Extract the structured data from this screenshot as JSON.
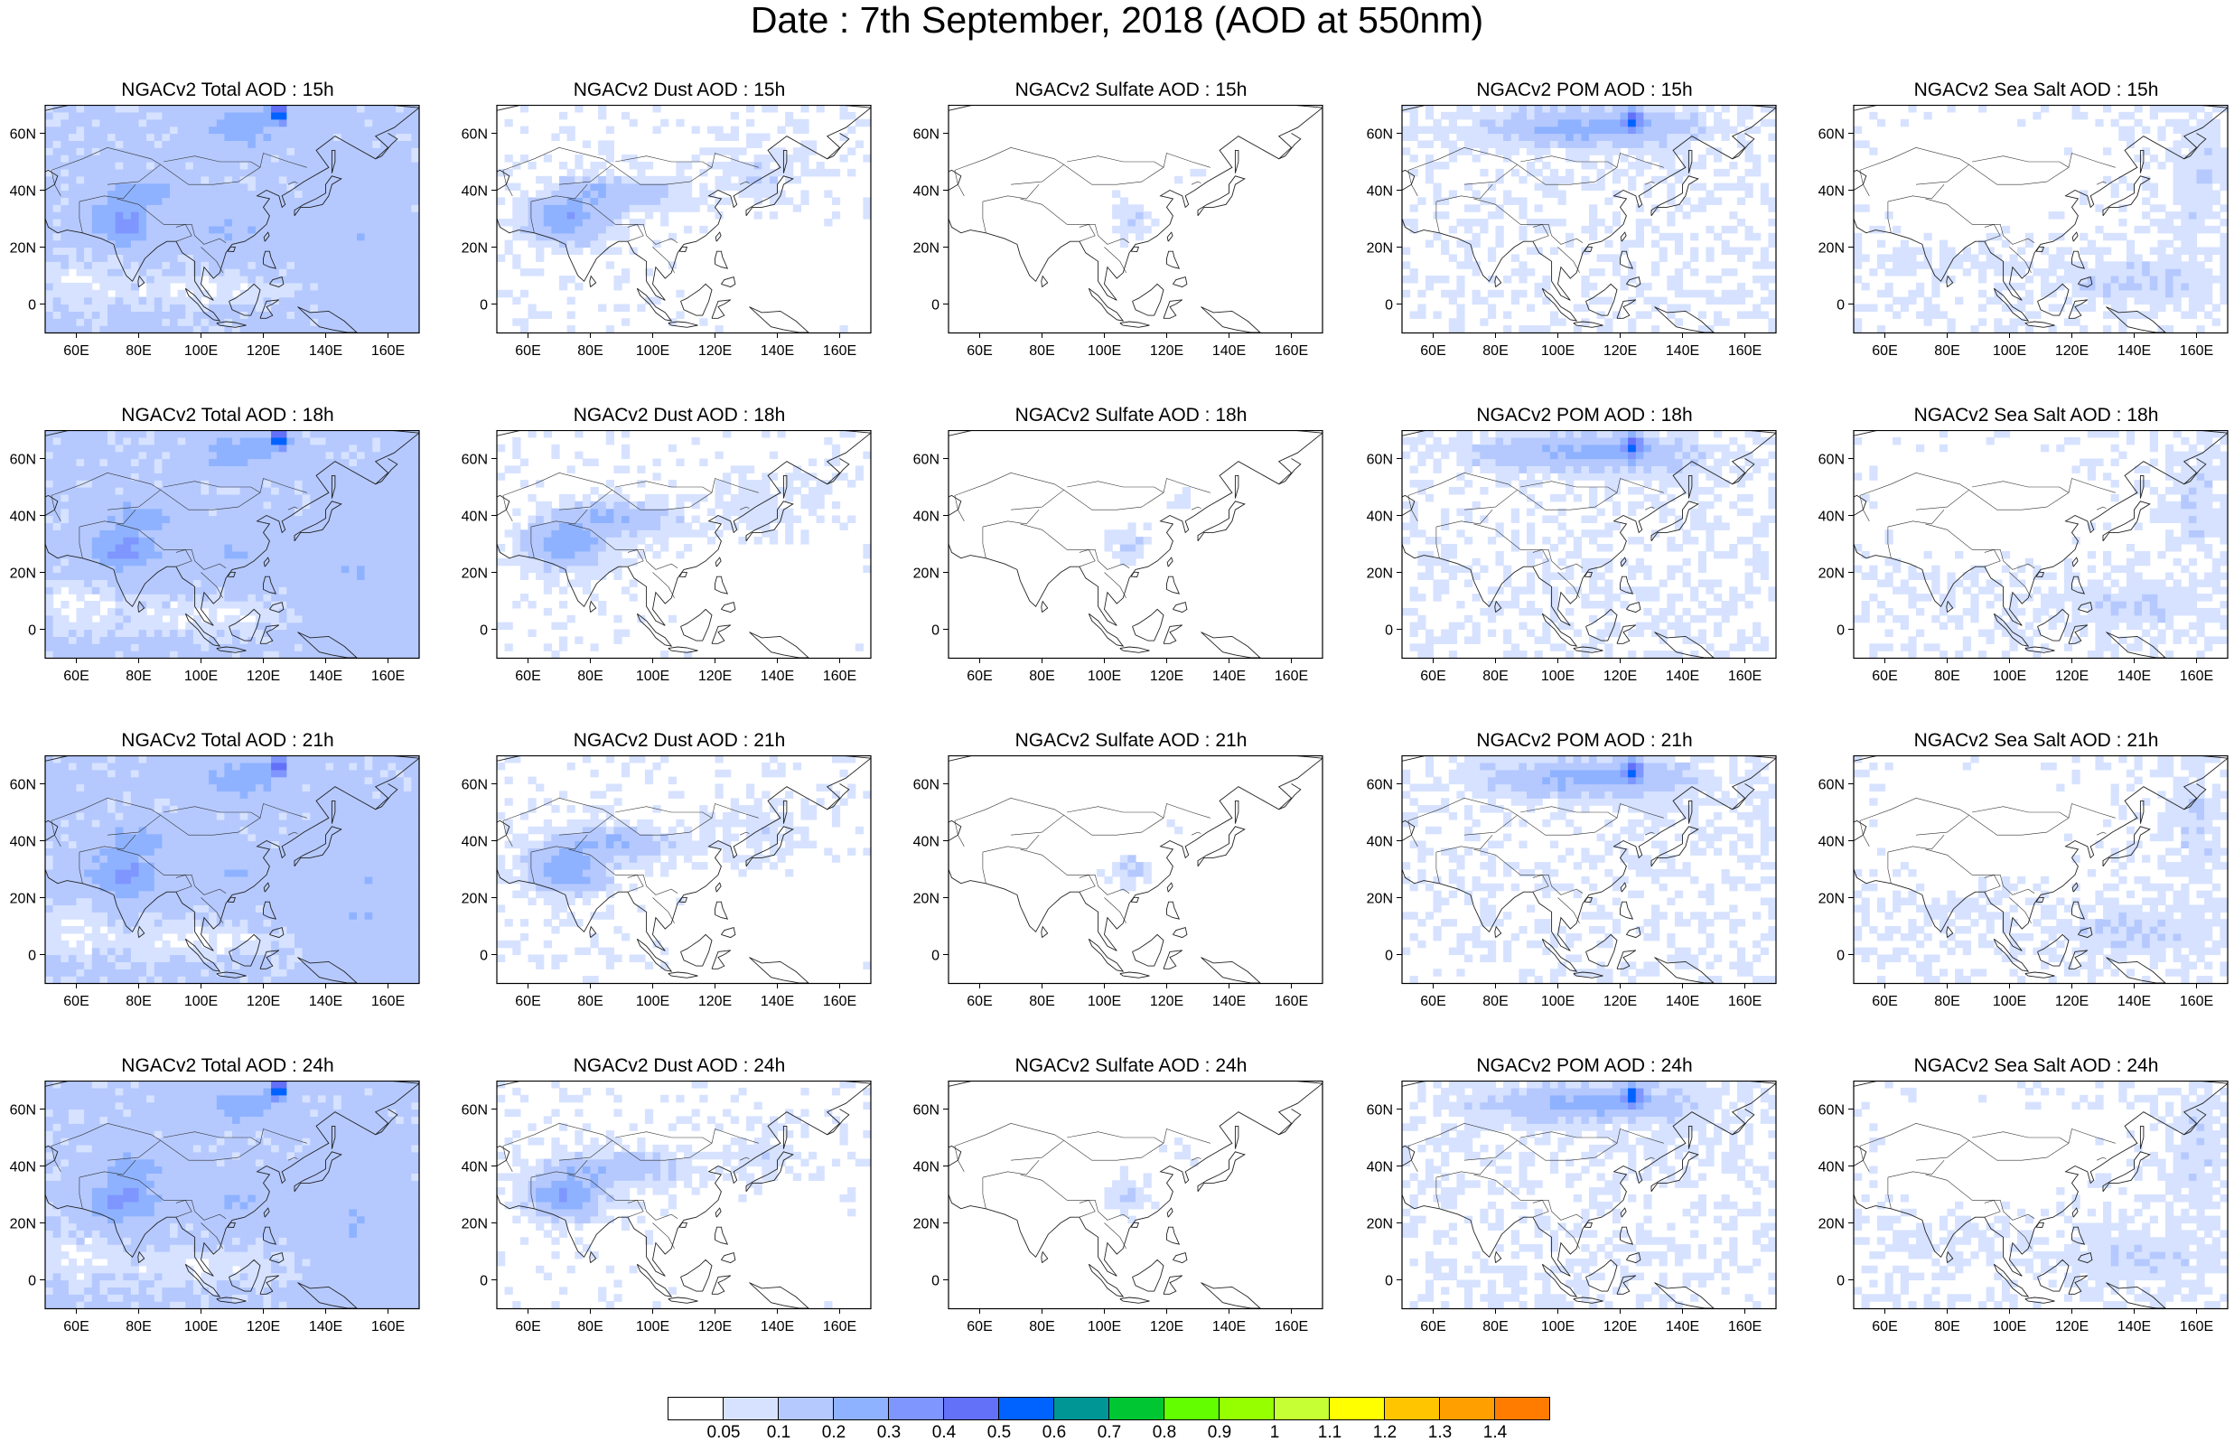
{
  "title": "Date : 7th September, 2018 (AOD at 550nm)",
  "lon_ticks": [
    "60E",
    "80E",
    "100E",
    "120E",
    "140E",
    "160E"
  ],
  "lat_ticks": [
    "60N",
    "40N",
    "20N",
    "0"
  ],
  "panels": [
    {
      "title": "NGACv2 Total AOD : 15h",
      "species": "total",
      "hour": 15
    },
    {
      "title": "NGACv2 Dust AOD : 15h",
      "species": "dust",
      "hour": 15
    },
    {
      "title": "NGACv2 Sulfate AOD : 15h",
      "species": "sulfate",
      "hour": 15
    },
    {
      "title": "NGACv2 POM AOD : 15h",
      "species": "pom",
      "hour": 15
    },
    {
      "title": "NGACv2 Sea Salt AOD : 15h",
      "species": "seasalt",
      "hour": 15
    },
    {
      "title": "NGACv2 Total AOD : 18h",
      "species": "total",
      "hour": 18
    },
    {
      "title": "NGACv2 Dust AOD : 18h",
      "species": "dust",
      "hour": 18
    },
    {
      "title": "NGACv2 Sulfate AOD : 18h",
      "species": "sulfate",
      "hour": 18
    },
    {
      "title": "NGACv2 POM AOD : 18h",
      "species": "pom",
      "hour": 18
    },
    {
      "title": "NGACv2 Sea Salt AOD : 18h",
      "species": "seasalt",
      "hour": 18
    },
    {
      "title": "NGACv2 Total AOD : 21h",
      "species": "total",
      "hour": 21
    },
    {
      "title": "NGACv2 Dust AOD : 21h",
      "species": "dust",
      "hour": 21
    },
    {
      "title": "NGACv2 Sulfate AOD : 21h",
      "species": "sulfate",
      "hour": 21
    },
    {
      "title": "NGACv2 POM AOD : 21h",
      "species": "pom",
      "hour": 21
    },
    {
      "title": "NGACv2 Sea Salt AOD : 21h",
      "species": "seasalt",
      "hour": 21
    },
    {
      "title": "NGACv2 Total AOD : 24h",
      "species": "total",
      "hour": 24
    },
    {
      "title": "NGACv2 Dust AOD : 24h",
      "species": "dust",
      "hour": 24
    },
    {
      "title": "NGACv2 Sulfate AOD : 24h",
      "species": "sulfate",
      "hour": 24
    },
    {
      "title": "NGACv2 POM AOD : 24h",
      "species": "pom",
      "hour": 24
    },
    {
      "title": "NGACv2 Sea Salt  AOD : 24h",
      "species": "seasalt",
      "hour": 24
    }
  ],
  "colorbar": {
    "labels": [
      "0.05",
      "0.1",
      "0.2",
      "0.3",
      "0.4",
      "0.5",
      "0.6",
      "0.7",
      "0.8",
      "0.9",
      "1",
      "1.1",
      "1.2",
      "1.3",
      "1.4"
    ],
    "colors": [
      "#ffffff",
      "#d6e2ff",
      "#b5c9ff",
      "#8eb2ff",
      "#7f96ff",
      "#6370f8",
      "#0063ff",
      "#009696",
      "#00c633",
      "#63ff00",
      "#96ff00",
      "#c6ff33",
      "#ffff00",
      "#ffc600",
      "#ffa000",
      "#ff7c00",
      "#ff1900"
    ]
  },
  "map_extent": {
    "lon": [
      50,
      170
    ],
    "lat": [
      -10,
      70
    ]
  }
}
